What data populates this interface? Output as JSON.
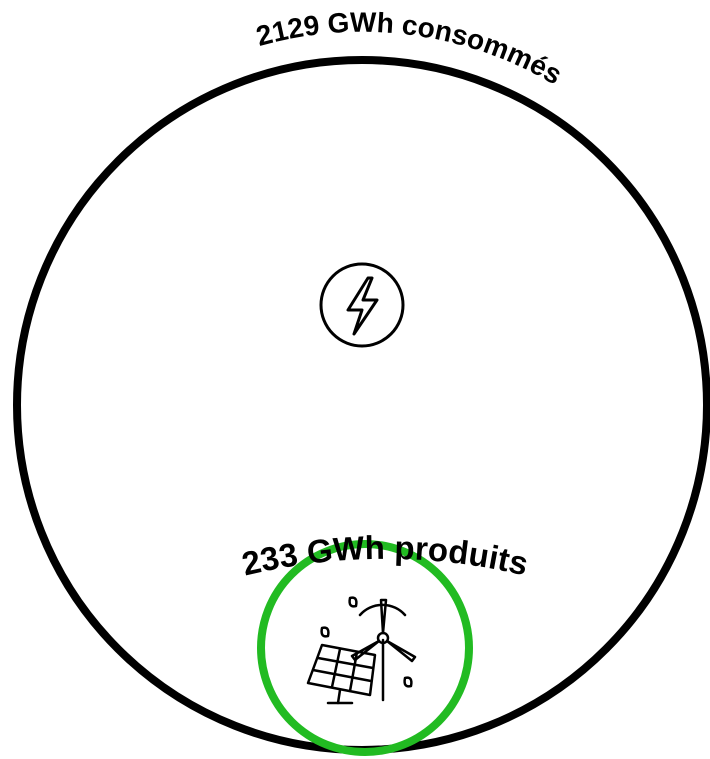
{
  "consumed": {
    "label": "2129 GWh consommés"
  },
  "produced": {
    "label": "233 GWh produits"
  }
}
